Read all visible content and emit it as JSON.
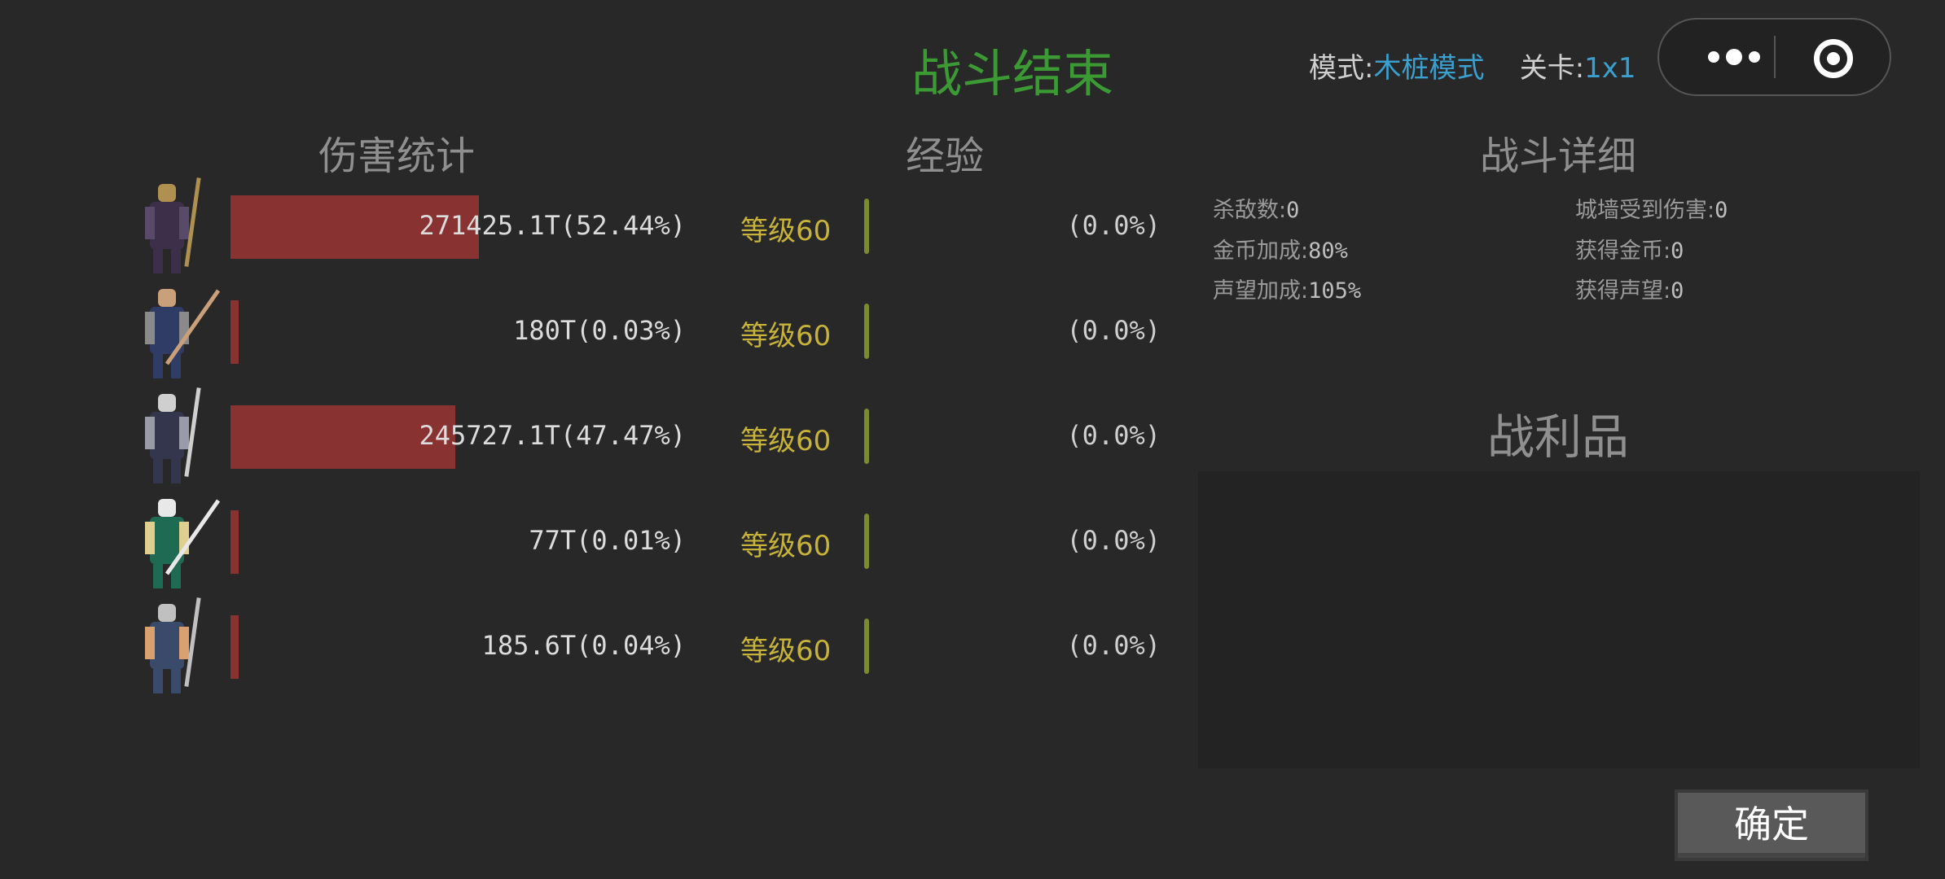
{
  "header": {
    "title": "战斗结束",
    "mode_label": "模式:",
    "mode_value": "木桩模式",
    "stage_label": "关卡:",
    "stage_value": "1x1",
    "capsule_icons": [
      "more-dots-icon",
      "target-circle-icon"
    ]
  },
  "damage": {
    "heading": "伤害统计",
    "rows": [
      {
        "hero": "dark-mage",
        "damage": "271425.1T",
        "percent": 52.44,
        "text": "271425.1T(52.44%)",
        "level": "等级60",
        "xp": "(0.0%)",
        "xp_fraction": 0.0
      },
      {
        "hero": "swordsman",
        "damage": "180T",
        "percent": 0.03,
        "text": "180T(0.03%)",
        "level": "等级60",
        "xp": "(0.0%)",
        "xp_fraction": 0.0
      },
      {
        "hero": "caped-knight",
        "damage": "245727.1T",
        "percent": 47.47,
        "text": "245727.1T(47.47%)",
        "level": "等级60",
        "xp": "(0.0%)",
        "xp_fraction": 0.0
      },
      {
        "hero": "elf-archer",
        "damage": "77T",
        "percent": 0.01,
        "text": "77T(0.01%)",
        "level": "等级60",
        "xp": "(0.0%)",
        "xp_fraction": 0.0
      },
      {
        "hero": "dual-blade-warrior",
        "damage": "185.6T",
        "percent": 0.04,
        "text": "185.6T(0.04%)",
        "level": "等级60",
        "xp": "(0.0%)",
        "xp_fraction": 0.0
      }
    ]
  },
  "experience": {
    "heading": "经验"
  },
  "details": {
    "heading": "战斗详细",
    "left": [
      {
        "label": "杀敌数:",
        "value": "0"
      },
      {
        "label": "金币加成:",
        "value": "80%"
      },
      {
        "label": "声望加成:",
        "value": "105%"
      }
    ],
    "right": [
      {
        "label": "城墙受到伤害:",
        "value": "0"
      },
      {
        "label": "获得金币:",
        "value": "0"
      },
      {
        "label": "获得声望:",
        "value": "0"
      }
    ]
  },
  "loot": {
    "heading": "战利品"
  },
  "confirm_button": "确定",
  "colors": {
    "background": "#282828",
    "title": "#3c9a34",
    "accent_blue": "#3aa0d0",
    "damage_bar": "#883232",
    "level": "#c8b33a",
    "xp_bar": "#7a8c2e"
  }
}
